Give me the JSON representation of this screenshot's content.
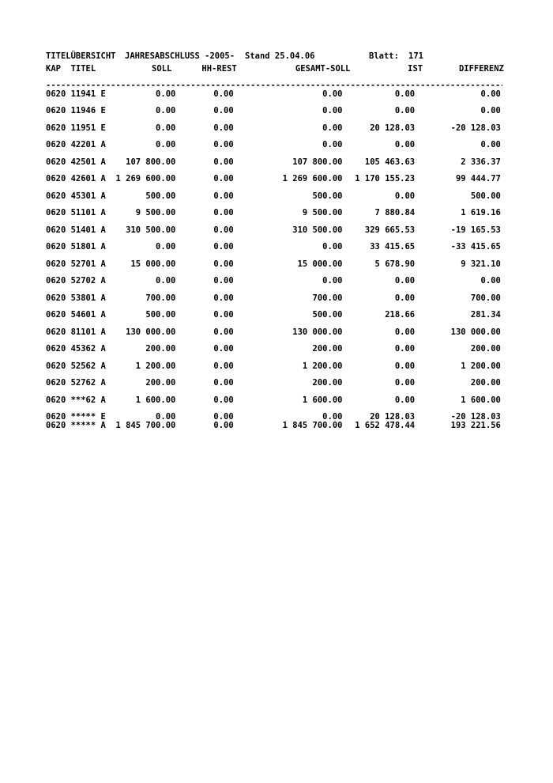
{
  "page_header": {
    "title": "TITELÜBERSICHT",
    "subtitle": "JAHRESABSCHLUSS -2005-",
    "stand": "Stand 25.04.06",
    "blatt_label": "Blatt:",
    "blatt_value": "171"
  },
  "divider": "----------------------------------------------------------------------------------------------------",
  "table": {
    "header": {
      "kap": "KAP",
      "titel": "TITEL",
      "soll": "SOLL",
      "hh_rest": "HH-REST",
      "gesamt_soll": "GESAMT-SOLL",
      "ist": "IST",
      "differenz": "DIFFERENZ"
    },
    "rows": [
      {
        "kap": "0620",
        "titel": "11941",
        "art": "E",
        "soll": "0.00",
        "hh_rest": "0.00",
        "gesamt_soll": "0.00",
        "ist": "0.00",
        "differenz": "0.00",
        "summary": false
      },
      {
        "kap": "0620",
        "titel": "11946",
        "art": "E",
        "soll": "0.00",
        "hh_rest": "0.00",
        "gesamt_soll": "0.00",
        "ist": "0.00",
        "differenz": "0.00",
        "summary": false
      },
      {
        "kap": "0620",
        "titel": "11951",
        "art": "E",
        "soll": "0.00",
        "hh_rest": "0.00",
        "gesamt_soll": "0.00",
        "ist": "20 128.03",
        "differenz": "-20 128.03",
        "summary": false
      },
      {
        "kap": "0620",
        "titel": "42201",
        "art": "A",
        "soll": "0.00",
        "hh_rest": "0.00",
        "gesamt_soll": "0.00",
        "ist": "0.00",
        "differenz": "0.00",
        "summary": false
      },
      {
        "kap": "0620",
        "titel": "42501",
        "art": "A",
        "soll": "107 800.00",
        "hh_rest": "0.00",
        "gesamt_soll": "107 800.00",
        "ist": "105 463.63",
        "differenz": "2 336.37",
        "summary": false
      },
      {
        "kap": "0620",
        "titel": "42601",
        "art": "A",
        "soll": "1 269 600.00",
        "hh_rest": "0.00",
        "gesamt_soll": "1 269 600.00",
        "ist": "1 170 155.23",
        "differenz": "99 444.77",
        "summary": false
      },
      {
        "kap": "0620",
        "titel": "45301",
        "art": "A",
        "soll": "500.00",
        "hh_rest": "0.00",
        "gesamt_soll": "500.00",
        "ist": "0.00",
        "differenz": "500.00",
        "summary": false
      },
      {
        "kap": "0620",
        "titel": "51101",
        "art": "A",
        "soll": "9 500.00",
        "hh_rest": "0.00",
        "gesamt_soll": "9 500.00",
        "ist": "7 880.84",
        "differenz": "1 619.16",
        "summary": false
      },
      {
        "kap": "0620",
        "titel": "51401",
        "art": "A",
        "soll": "310 500.00",
        "hh_rest": "0.00",
        "gesamt_soll": "310 500.00",
        "ist": "329 665.53",
        "differenz": "-19 165.53",
        "summary": false
      },
      {
        "kap": "0620",
        "titel": "51801",
        "art": "A",
        "soll": "0.00",
        "hh_rest": "0.00",
        "gesamt_soll": "0.00",
        "ist": "33 415.65",
        "differenz": "-33 415.65",
        "summary": false
      },
      {
        "kap": "0620",
        "titel": "52701",
        "art": "A",
        "soll": "15 000.00",
        "hh_rest": "0.00",
        "gesamt_soll": "15 000.00",
        "ist": "5 678.90",
        "differenz": "9 321.10",
        "summary": false
      },
      {
        "kap": "0620",
        "titel": "52702",
        "art": "A",
        "soll": "0.00",
        "hh_rest": "0.00",
        "gesamt_soll": "0.00",
        "ist": "0.00",
        "differenz": "0.00",
        "summary": false
      },
      {
        "kap": "0620",
        "titel": "53801",
        "art": "A",
        "soll": "700.00",
        "hh_rest": "0.00",
        "gesamt_soll": "700.00",
        "ist": "0.00",
        "differenz": "700.00",
        "summary": false
      },
      {
        "kap": "0620",
        "titel": "54601",
        "art": "A",
        "soll": "500.00",
        "hh_rest": "0.00",
        "gesamt_soll": "500.00",
        "ist": "218.66",
        "differenz": "281.34",
        "summary": false
      },
      {
        "kap": "0620",
        "titel": "81101",
        "art": "A",
        "soll": "130 000.00",
        "hh_rest": "0.00",
        "gesamt_soll": "130 000.00",
        "ist": "0.00",
        "differenz": "130 000.00",
        "summary": false
      },
      {
        "kap": "0620",
        "titel": "45362",
        "art": "A",
        "soll": "200.00",
        "hh_rest": "0.00",
        "gesamt_soll": "200.00",
        "ist": "0.00",
        "differenz": "200.00",
        "summary": false
      },
      {
        "kap": "0620",
        "titel": "52562",
        "art": "A",
        "soll": "1 200.00",
        "hh_rest": "0.00",
        "gesamt_soll": "1 200.00",
        "ist": "0.00",
        "differenz": "1 200.00",
        "summary": false
      },
      {
        "kap": "0620",
        "titel": "52762",
        "art": "A",
        "soll": "200.00",
        "hh_rest": "0.00",
        "gesamt_soll": "200.00",
        "ist": "0.00",
        "differenz": "200.00",
        "summary": false
      },
      {
        "kap": "0620",
        "titel": "***62",
        "art": "A",
        "soll": "1 600.00",
        "hh_rest": "0.00",
        "gesamt_soll": "1 600.00",
        "ist": "0.00",
        "differenz": "1 600.00",
        "summary": false
      },
      {
        "kap": "0620",
        "titel": "*****",
        "art": "E",
        "soll": "0.00",
        "hh_rest": "0.00",
        "gesamt_soll": "0.00",
        "ist": "20 128.03",
        "differenz": "-20 128.03",
        "summary": true
      },
      {
        "kap": "0620",
        "titel": "*****",
        "art": "A",
        "soll": "1 845 700.00",
        "hh_rest": "0.00",
        "gesamt_soll": "1 845 700.00",
        "ist": "1 652 478.44",
        "differenz": "193 221.56",
        "summary": true
      }
    ]
  }
}
